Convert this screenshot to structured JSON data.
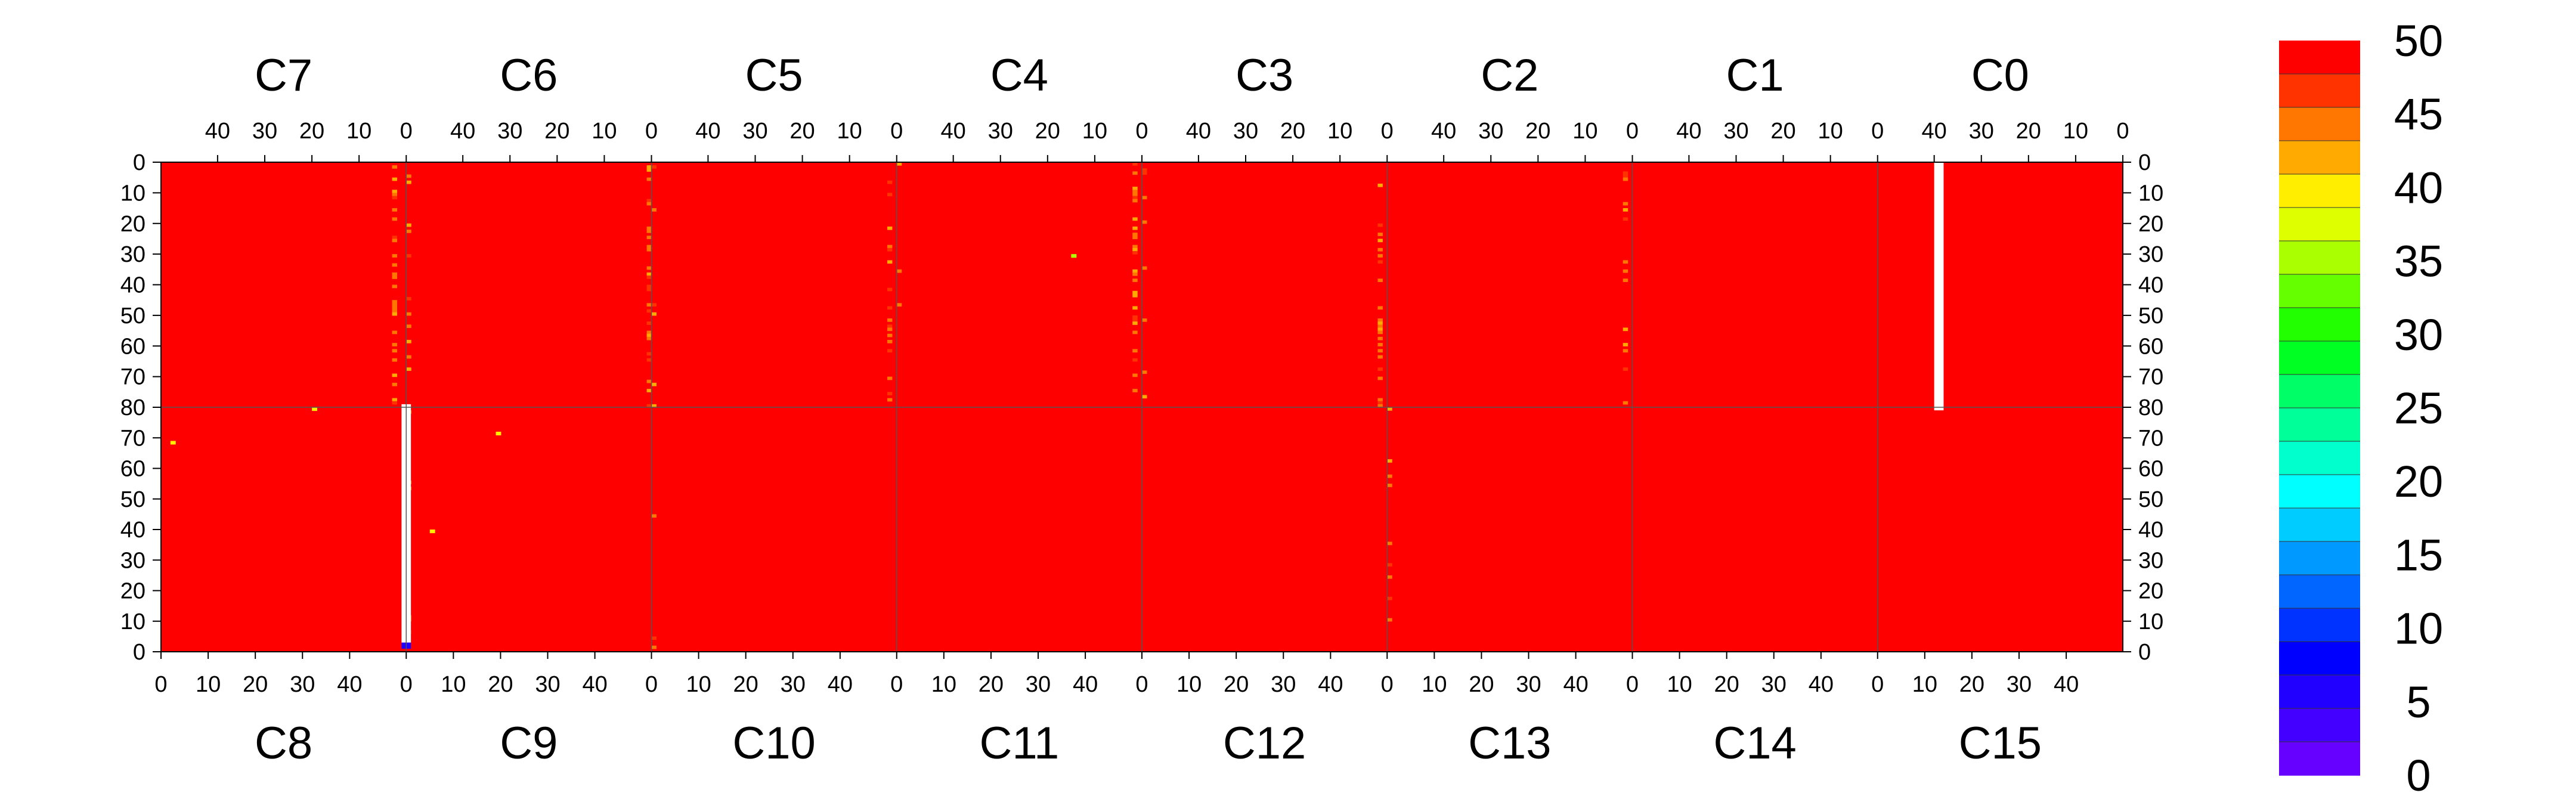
{
  "chart_data": {
    "type": "heatmap",
    "title": "",
    "xlabel": "",
    "ylabel": "",
    "chips_top": [
      "C7",
      "C6",
      "C5",
      "C4",
      "C3",
      "C2",
      "C1",
      "C0"
    ],
    "chips_bottom": [
      "C8",
      "C9",
      "C10",
      "C11",
      "C12",
      "C13",
      "C14",
      "C15"
    ],
    "columns_per_chip": 52,
    "rows_per_half": 80,
    "top_x_ticks": [
      "40",
      "30",
      "20",
      "10",
      "0"
    ],
    "top_x_tick_values": [
      40,
      30,
      20,
      10,
      0
    ],
    "bottom_x_ticks": [
      "0",
      "10",
      "20",
      "30",
      "40"
    ],
    "bottom_x_tick_values": [
      0,
      10,
      20,
      30,
      40
    ],
    "top_y_ticks": [
      "0",
      "10",
      "20",
      "30",
      "40",
      "50",
      "60",
      "70",
      "80"
    ],
    "top_y_tick_values": [
      0,
      10,
      20,
      30,
      40,
      50,
      60,
      70,
      80
    ],
    "bottom_y_ticks": [
      "70",
      "60",
      "50",
      "40",
      "30",
      "20",
      "10",
      "0"
    ],
    "bottom_y_tick_values": [
      70,
      60,
      50,
      40,
      30,
      20,
      10,
      0
    ],
    "z_range": [
      0,
      50
    ],
    "colorbar_ticks": [
      "50",
      "45",
      "40",
      "35",
      "30",
      "25",
      "20",
      "15",
      "10",
      "5",
      "0"
    ],
    "colorbar_tick_values": [
      50,
      45,
      40,
      35,
      30,
      25,
      20,
      15,
      10,
      5,
      0
    ],
    "colorbar_colors": [
      "#FF0000",
      "#FF3300",
      "#FF7700",
      "#FFAA00",
      "#FFEE00",
      "#DDFF00",
      "#AAFF00",
      "#66FF00",
      "#22FF00",
      "#00FF22",
      "#00FF66",
      "#00FF99",
      "#00FFCC",
      "#00FFFF",
      "#00CCFF",
      "#0099FF",
      "#0066FF",
      "#0033FF",
      "#0000FF",
      "#2200FF",
      "#4400FF",
      "#6600FF"
    ],
    "background_value": 50,
    "dominant_color": "#FF0000",
    "dead_regions": [
      {
        "chip": "C0",
        "half": "top",
        "col_range": [
          38,
          39
        ],
        "row_range": [
          0,
          80
        ],
        "value": null
      },
      {
        "chip": "C8",
        "half": "bottom",
        "col_range": [
          51,
          52
        ],
        "row_range": [
          3,
          80
        ],
        "value": null
      },
      {
        "chip": "C8",
        "half": "bottom",
        "col_range": [
          51,
          52
        ],
        "row_range": [
          1,
          2
        ],
        "value": 5
      }
    ],
    "hot_pixels": [
      {
        "chip": "C4",
        "half": "top",
        "col": 14,
        "row": 30,
        "value": 35
      },
      {
        "chip": "C8",
        "half": "bottom",
        "col": 2,
        "row": 68,
        "value": 40
      },
      {
        "chip": "C8",
        "half": "bottom",
        "col": 32,
        "row": 79,
        "value": 40
      },
      {
        "chip": "C9",
        "half": "bottom",
        "col": 5,
        "row": 39,
        "value": 40
      },
      {
        "chip": "C9",
        "half": "bottom",
        "col": 19,
        "row": 71,
        "value": 40
      }
    ],
    "noise_columns": [
      {
        "chip": "C7",
        "half": "top",
        "col": 2,
        "density": "high"
      },
      {
        "chip": "C6",
        "half": "top",
        "col": 0,
        "density": "high"
      },
      {
        "chip": "C6",
        "half": "top",
        "col": 51,
        "density": "medium"
      },
      {
        "chip": "C5",
        "half": "top",
        "col": 1,
        "density": "medium"
      },
      {
        "chip": "C5",
        "half": "top",
        "col": 51,
        "density": "low"
      },
      {
        "chip": "C4",
        "half": "top",
        "col": 1,
        "density": "high"
      },
      {
        "chip": "C4",
        "half": "top",
        "col": 51,
        "density": "low"
      },
      {
        "chip": "C3",
        "half": "top",
        "col": 1,
        "density": "medium"
      },
      {
        "chip": "C3",
        "half": "top",
        "col": 51,
        "density": "low"
      },
      {
        "chip": "C2",
        "half": "top",
        "col": 1,
        "density": "medium"
      },
      {
        "chip": "C9",
        "half": "bottom",
        "col": 0,
        "density": "low"
      },
      {
        "chip": "C10",
        "half": "bottom",
        "col": 0,
        "density": "low"
      },
      {
        "chip": "C13",
        "half": "bottom",
        "col": 0,
        "density": "low"
      }
    ]
  }
}
